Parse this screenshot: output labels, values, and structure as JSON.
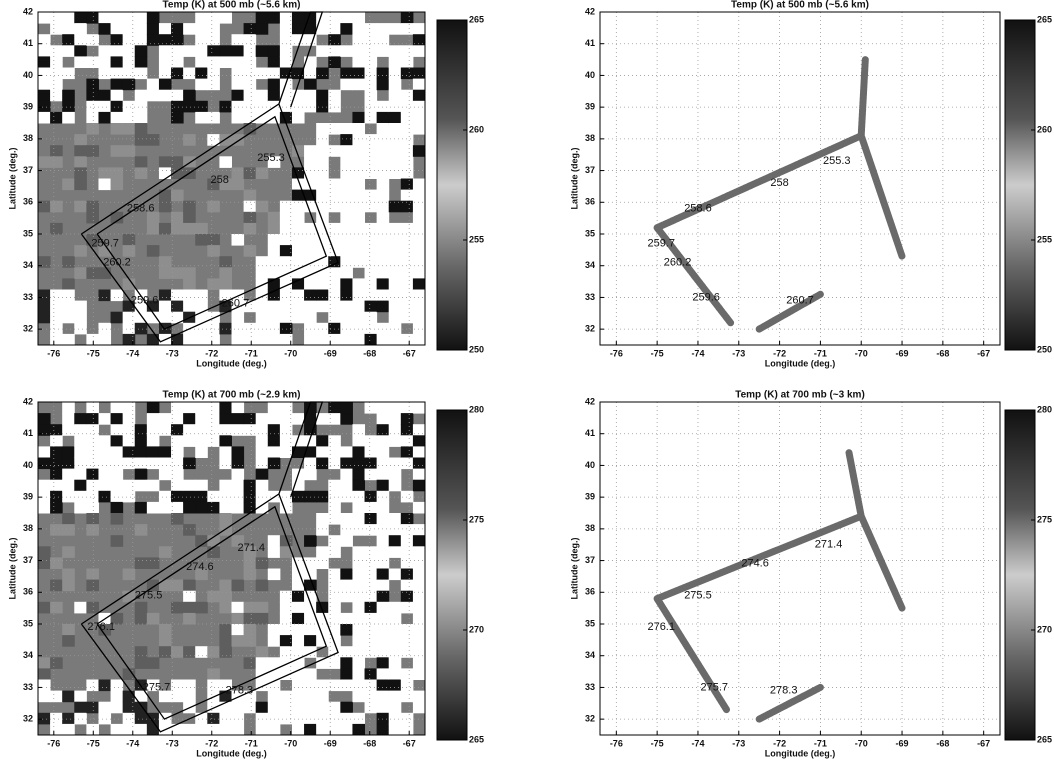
{
  "chart_data": [
    {
      "type": "map",
      "title": "Temp (K) at 500 mb (~5.6 km)",
      "xlabel": "Longitude (deg.)",
      "ylabel": "Latitude (deg.)",
      "xlim": [
        -76.4,
        -66.6
      ],
      "xticks": [
        -76,
        -75,
        -74,
        -73,
        -72,
        -71,
        -70,
        -69,
        -68,
        -67
      ],
      "ylim": [
        31.5,
        42
      ],
      "yticks": [
        32,
        33,
        34,
        35,
        36,
        37,
        38,
        39,
        40,
        41,
        42
      ],
      "grid": true,
      "imagery": true,
      "clim": [
        250,
        265
      ],
      "cticks": [
        250,
        255,
        260,
        265
      ],
      "outline": {
        "x": [
          -75.3,
          -70.3,
          -68.8,
          -73.3,
          -75.3,
          null,
          -74.9,
          -70.4,
          -69.1,
          -73.2,
          -74.9,
          null,
          -70.3,
          -69.5,
          -69.2,
          -70.0
        ],
        "y": [
          35.0,
          39.1,
          34.1,
          31.6,
          35.0,
          null,
          35.0,
          38.7,
          34.3,
          32.0,
          35.0,
          null,
          39.1,
          42.0,
          42.0,
          39.0
        ]
      },
      "annotations": [
        {
          "x": -70.5,
          "y": 37.4,
          "value": 255.3
        },
        {
          "x": -71.8,
          "y": 36.7,
          "value": 258
        },
        {
          "x": -73.8,
          "y": 35.8,
          "value": 258.6
        },
        {
          "x": -74.7,
          "y": 34.7,
          "value": 259.7
        },
        {
          "x": -74.4,
          "y": 34.1,
          "value": 260.2
        },
        {
          "x": -73.7,
          "y": 32.9,
          "value": 259.6
        },
        {
          "x": -71.4,
          "y": 32.8,
          "value": 260.7
        }
      ]
    },
    {
      "type": "map",
      "title": "Temp (K) at 500 mb (~5.6 km)",
      "xlabel": "Longitude (deg.)",
      "ylabel": "Latitude (deg.)",
      "xlim": [
        -76.4,
        -66.6
      ],
      "xticks": [
        -76,
        -75,
        -74,
        -73,
        -72,
        -71,
        -70,
        -69,
        -68,
        -67
      ],
      "ylim": [
        31.5,
        42
      ],
      "yticks": [
        32,
        33,
        34,
        35,
        36,
        37,
        38,
        39,
        40,
        41,
        42
      ],
      "grid": true,
      "imagery": false,
      "clim": [
        250,
        265
      ],
      "cticks": [
        250,
        255,
        260,
        265
      ],
      "track": {
        "x": [
          -75.0,
          -70.0,
          -69.0,
          null,
          -70.0,
          -69.9,
          null,
          -75.0,
          -73.2,
          null,
          -72.5,
          -71.0
        ],
        "y": [
          35.2,
          38.1,
          34.3,
          null,
          38.1,
          40.5,
          null,
          35.2,
          32.2,
          null,
          32.0,
          33.1
        ]
      },
      "annotations": [
        {
          "x": -70.6,
          "y": 37.3,
          "value": 255.3
        },
        {
          "x": -72.0,
          "y": 36.6,
          "value": 258
        },
        {
          "x": -74.0,
          "y": 35.8,
          "value": 258.6
        },
        {
          "x": -74.9,
          "y": 34.7,
          "value": 259.7
        },
        {
          "x": -74.5,
          "y": 34.1,
          "value": 260.2
        },
        {
          "x": -73.8,
          "y": 33.0,
          "value": 259.6
        },
        {
          "x": -71.5,
          "y": 32.9,
          "value": 260.7
        }
      ]
    },
    {
      "type": "map",
      "title": "Temp (K) at 700 mb (~2.9 km)",
      "xlabel": "Longitude (deg.)",
      "ylabel": "Latitude (deg.)",
      "xlim": [
        -76.4,
        -66.6
      ],
      "xticks": [
        -76,
        -75,
        -74,
        -73,
        -72,
        -71,
        -70,
        -69,
        -68,
        -67
      ],
      "ylim": [
        31.5,
        42
      ],
      "yticks": [
        32,
        33,
        34,
        35,
        36,
        37,
        38,
        39,
        40,
        41,
        42
      ],
      "grid": true,
      "imagery": true,
      "clim": [
        265,
        280
      ],
      "cticks": [
        265,
        270,
        275,
        280
      ],
      "outline": {
        "x": [
          -75.3,
          -70.3,
          -68.8,
          -73.3,
          -75.3,
          null,
          -74.9,
          -70.4,
          -69.1,
          -73.2,
          -74.9,
          null,
          -70.3,
          -69.5,
          -69.2,
          -70.0
        ],
        "y": [
          35.0,
          39.1,
          34.1,
          31.6,
          35.0,
          null,
          35.0,
          38.7,
          34.3,
          32.0,
          35.0,
          null,
          39.1,
          42.0,
          42.0,
          39.0
        ]
      },
      "annotations": [
        {
          "x": -71.0,
          "y": 37.4,
          "value": 271.4
        },
        {
          "x": -72.3,
          "y": 36.8,
          "value": 274.6
        },
        {
          "x": -73.6,
          "y": 35.9,
          "value": 275.5
        },
        {
          "x": -74.8,
          "y": 34.9,
          "value": 276.1
        },
        {
          "x": -73.4,
          "y": 33.0,
          "value": 275.7
        },
        {
          "x": -71.3,
          "y": 32.9,
          "value": 278.3
        }
      ]
    },
    {
      "type": "map",
      "title": "Temp (K) at 700 mb (~3 km)",
      "xlabel": "Longitude (deg.)",
      "ylabel": "Latitude (deg.)",
      "xlim": [
        -76.4,
        -66.6
      ],
      "xticks": [
        -76,
        -75,
        -74,
        -73,
        -72,
        -71,
        -70,
        -69,
        -68,
        -67
      ],
      "ylim": [
        31.5,
        42
      ],
      "yticks": [
        32,
        33,
        34,
        35,
        36,
        37,
        38,
        39,
        40,
        41,
        42
      ],
      "grid": true,
      "imagery": false,
      "clim": [
        265,
        280
      ],
      "cticks": [
        265,
        270,
        275,
        280
      ],
      "track": {
        "x": [
          -75.0,
          -70.0,
          -69.0,
          null,
          -70.0,
          -70.3,
          null,
          -75.0,
          -73.3,
          null,
          -72.5,
          -71.0
        ],
        "y": [
          35.8,
          38.4,
          35.5,
          null,
          38.4,
          40.4,
          null,
          35.8,
          32.3,
          null,
          32.0,
          33.0
        ]
      },
      "annotations": [
        {
          "x": -70.8,
          "y": 37.5,
          "value": 271.4
        },
        {
          "x": -72.6,
          "y": 36.9,
          "value": 274.6
        },
        {
          "x": -74.0,
          "y": 35.9,
          "value": 275.5
        },
        {
          "x": -74.9,
          "y": 34.9,
          "value": 276.1
        },
        {
          "x": -73.6,
          "y": 33.0,
          "value": 275.7
        },
        {
          "x": -71.9,
          "y": 32.9,
          "value": 278.3
        }
      ]
    }
  ]
}
